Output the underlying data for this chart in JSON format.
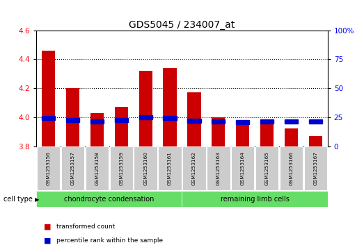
{
  "title": "GDS5045 / 234007_at",
  "samples": [
    "GSM1253156",
    "GSM1253157",
    "GSM1253158",
    "GSM1253159",
    "GSM1253160",
    "GSM1253161",
    "GSM1253162",
    "GSM1253163",
    "GSM1253164",
    "GSM1253165",
    "GSM1253166",
    "GSM1253167"
  ],
  "transformed_counts": [
    4.46,
    4.2,
    4.03,
    4.07,
    4.32,
    4.34,
    4.17,
    4.0,
    3.97,
    3.96,
    3.92,
    3.87
  ],
  "percentile_ranks": [
    24.5,
    22.5,
    21.5,
    22.5,
    25.0,
    24.0,
    22.0,
    21.5,
    20.5,
    21.0,
    21.5,
    21.0
  ],
  "ylim_left": [
    3.8,
    4.6
  ],
  "ylim_right": [
    0,
    100
  ],
  "yticks_left": [
    3.8,
    4.0,
    4.2,
    4.4,
    4.6
  ],
  "yticks_right": [
    0,
    25,
    50,
    75,
    100
  ],
  "bar_color": "#cc0000",
  "percentile_color": "#0000cc",
  "bar_width": 0.55,
  "groups": [
    {
      "label": "chondrocyte condensation",
      "start": 0,
      "end": 5,
      "color": "#66dd66"
    },
    {
      "label": "remaining limb cells",
      "start": 6,
      "end": 11,
      "color": "#66dd66"
    }
  ],
  "cell_type_label": "cell type",
  "legend_items": [
    {
      "label": "transformed count",
      "color": "#cc0000"
    },
    {
      "label": "percentile rank within the sample",
      "color": "#0000cc"
    }
  ],
  "plot_bg": "#ffffff",
  "title_fontsize": 10,
  "tick_fontsize": 7.5,
  "label_fontsize": 7.5
}
